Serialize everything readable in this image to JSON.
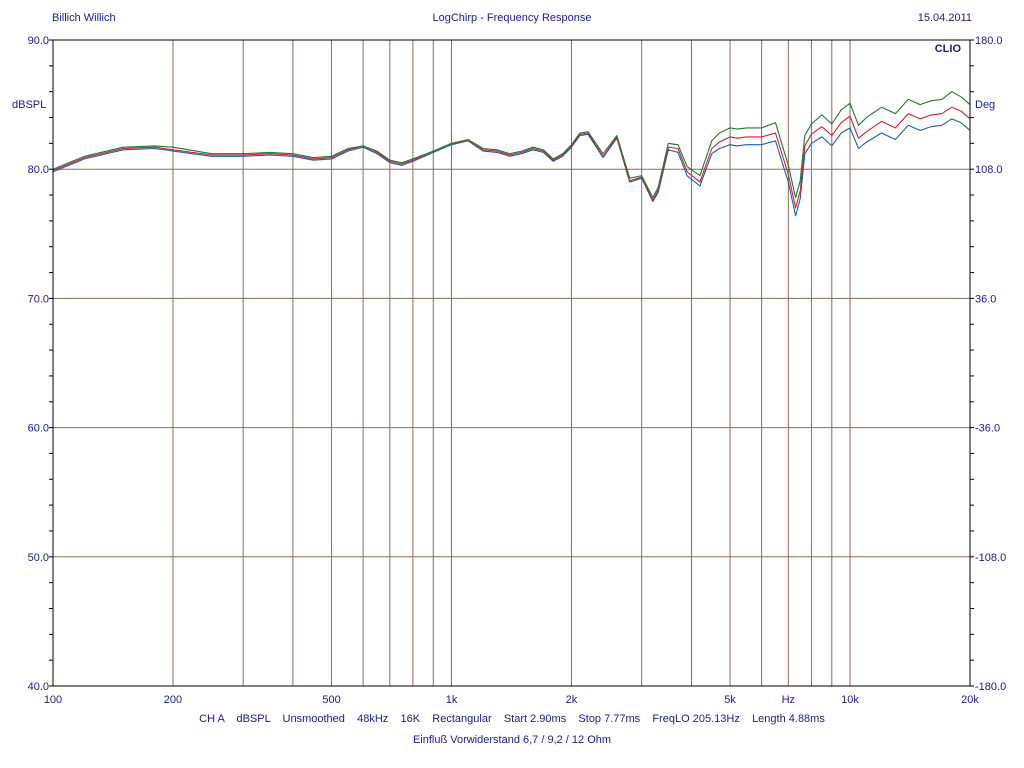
{
  "header": {
    "left": "Billich Willich",
    "center": "LogChirp - Frequency Response",
    "right": "15.04.2011"
  },
  "footer": {
    "settings": "CH A    dBSPL    Unsmoothed    48kHz    16K    Rectangular    Start 2.90ms    Stop 7.77ms    FreqLO 205.13Hz    Length 4.88ms",
    "note": "Einfluß Vorwiderstand 6,7 / 9,2 / 12 Ohm"
  },
  "chart_data": {
    "type": "line",
    "brand": "CLIO",
    "ylabel_left": "dBSPL",
    "ylabel_right": "Deg",
    "xscale": "log",
    "xlim": [
      100,
      20000
    ],
    "ylim": [
      40,
      90
    ],
    "y2lim": [
      -180,
      180
    ],
    "grid": true,
    "x_ticks": [
      {
        "v": 100,
        "label": "100"
      },
      {
        "v": 200,
        "label": "200"
      },
      {
        "v": 500,
        "label": "500"
      },
      {
        "v": 1000,
        "label": "1k"
      },
      {
        "v": 2000,
        "label": "2k"
      },
      {
        "v": 5000,
        "label": "5k"
      },
      {
        "v": 7000,
        "label": "Hz"
      },
      {
        "v": 10000,
        "label": "10k"
      },
      {
        "v": 20000,
        "label": "20k"
      }
    ],
    "y_ticks": [
      {
        "v": 90,
        "label": "90.0"
      },
      {
        "v": 80,
        "label": "80.0"
      },
      {
        "v": 70,
        "label": "70.0"
      },
      {
        "v": 60,
        "label": "60.0"
      },
      {
        "v": 50,
        "label": "50.0"
      },
      {
        "v": 40,
        "label": "40.0"
      }
    ],
    "y2_ticks": [
      {
        "v": 180,
        "label": "180.0"
      },
      {
        "v": 108,
        "label": "108.0"
      },
      {
        "v": 36,
        "label": "36.0"
      },
      {
        "v": -36,
        "label": "-36.0"
      },
      {
        "v": -108,
        "label": "-108.0"
      },
      {
        "v": -180,
        "label": "-180.0"
      }
    ],
    "colors": {
      "frame": "#000000",
      "grid": "#8b6b5a",
      "text": "#1a1a8c"
    },
    "series": [
      {
        "color": "#1f5fa8",
        "x": [
          100,
          120,
          150,
          180,
          200,
          250,
          300,
          350,
          400,
          450,
          500,
          550,
          600,
          650,
          700,
          750,
          800,
          900,
          1000,
          1100,
          1200,
          1300,
          1400,
          1500,
          1600,
          1700,
          1800,
          1900,
          2000,
          2100,
          2200,
          2400,
          2600,
          2800,
          3000,
          3200,
          3300,
          3500,
          3700,
          3900,
          4200,
          4500,
          4700,
          5000,
          5200,
          5500,
          6000,
          6500,
          7000,
          7300,
          7500,
          7700,
          8000,
          8500,
          9000,
          9500,
          10000,
          10500,
          11000,
          12000,
          13000,
          14000,
          15000,
          16000,
          17000,
          18000,
          19000,
          20000
        ],
        "y": [
          79.8,
          80.8,
          81.5,
          81.6,
          81.4,
          81.0,
          81.0,
          81.1,
          81.0,
          80.7,
          80.8,
          81.4,
          81.7,
          81.2,
          80.5,
          80.3,
          80.6,
          81.3,
          81.9,
          82.2,
          81.4,
          81.3,
          81.0,
          81.2,
          81.5,
          81.3,
          80.6,
          81.0,
          81.7,
          82.6,
          82.7,
          80.9,
          82.4,
          79.0,
          79.3,
          77.5,
          78.2,
          81.5,
          81.3,
          79.5,
          78.7,
          81.2,
          81.6,
          81.9,
          81.8,
          81.9,
          81.9,
          82.2,
          79.0,
          76.4,
          77.7,
          81.2,
          82.0,
          82.5,
          81.8,
          82.8,
          83.2,
          81.6,
          82.1,
          82.8,
          82.3,
          83.4,
          83.0,
          83.3,
          83.4,
          83.9,
          83.6,
          83.0
        ]
      },
      {
        "color": "#d81b2e",
        "x": [
          100,
          120,
          150,
          180,
          200,
          250,
          300,
          350,
          400,
          450,
          500,
          550,
          600,
          650,
          700,
          750,
          800,
          900,
          1000,
          1100,
          1200,
          1300,
          1400,
          1500,
          1600,
          1700,
          1800,
          1900,
          2000,
          2100,
          2200,
          2400,
          2600,
          2800,
          3000,
          3200,
          3300,
          3500,
          3700,
          3900,
          4200,
          4500,
          4700,
          5000,
          5200,
          5500,
          6000,
          6500,
          7000,
          7300,
          7500,
          7700,
          8000,
          8500,
          9000,
          9500,
          10000,
          10500,
          11000,
          12000,
          13000,
          14000,
          15000,
          16000,
          17000,
          18000,
          19000,
          20000
        ],
        "y": [
          79.9,
          80.9,
          81.6,
          81.7,
          81.5,
          81.1,
          81.1,
          81.2,
          81.1,
          80.8,
          80.9,
          81.5,
          81.8,
          81.3,
          80.6,
          80.4,
          80.7,
          81.4,
          82.0,
          82.2,
          81.5,
          81.4,
          81.1,
          81.3,
          81.6,
          81.4,
          80.7,
          81.1,
          81.8,
          82.7,
          82.8,
          81.0,
          82.5,
          79.1,
          79.4,
          77.6,
          78.4,
          81.7,
          81.6,
          79.8,
          79.0,
          81.6,
          82.1,
          82.5,
          82.4,
          82.5,
          82.5,
          82.8,
          79.6,
          77.0,
          78.3,
          81.8,
          82.7,
          83.3,
          82.6,
          83.6,
          84.1,
          82.4,
          82.9,
          83.7,
          83.2,
          84.3,
          83.9,
          84.2,
          84.3,
          84.8,
          84.5,
          83.9
        ]
      },
      {
        "color": "#1e7a2e",
        "x": [
          100,
          120,
          150,
          180,
          200,
          250,
          300,
          350,
          400,
          450,
          500,
          550,
          600,
          650,
          700,
          750,
          800,
          900,
          1000,
          1100,
          1200,
          1300,
          1400,
          1500,
          1600,
          1700,
          1800,
          1900,
          2000,
          2100,
          2200,
          2400,
          2600,
          2800,
          3000,
          3200,
          3300,
          3500,
          3700,
          3900,
          4200,
          4500,
          4700,
          5000,
          5200,
          5500,
          6000,
          6500,
          7000,
          7300,
          7500,
          7700,
          8000,
          8500,
          9000,
          9500,
          10000,
          10500,
          11000,
          12000,
          13000,
          14000,
          15000,
          16000,
          17000,
          18000,
          19000,
          20000
        ],
        "y": [
          80.0,
          81.0,
          81.7,
          81.8,
          81.7,
          81.2,
          81.2,
          81.3,
          81.2,
          80.9,
          81.0,
          81.6,
          81.8,
          81.4,
          80.7,
          80.5,
          80.8,
          81.4,
          82.0,
          82.3,
          81.6,
          81.5,
          81.2,
          81.4,
          81.7,
          81.5,
          80.8,
          81.2,
          81.9,
          82.8,
          82.9,
          81.2,
          82.6,
          79.3,
          79.5,
          77.8,
          78.6,
          82.0,
          81.9,
          80.2,
          79.5,
          82.2,
          82.8,
          83.2,
          83.1,
          83.2,
          83.2,
          83.6,
          80.3,
          77.8,
          79.1,
          82.6,
          83.5,
          84.2,
          83.5,
          84.6,
          85.1,
          83.4,
          84.0,
          84.8,
          84.3,
          85.4,
          85.0,
          85.3,
          85.4,
          86.0,
          85.6,
          85.0
        ]
      }
    ]
  }
}
